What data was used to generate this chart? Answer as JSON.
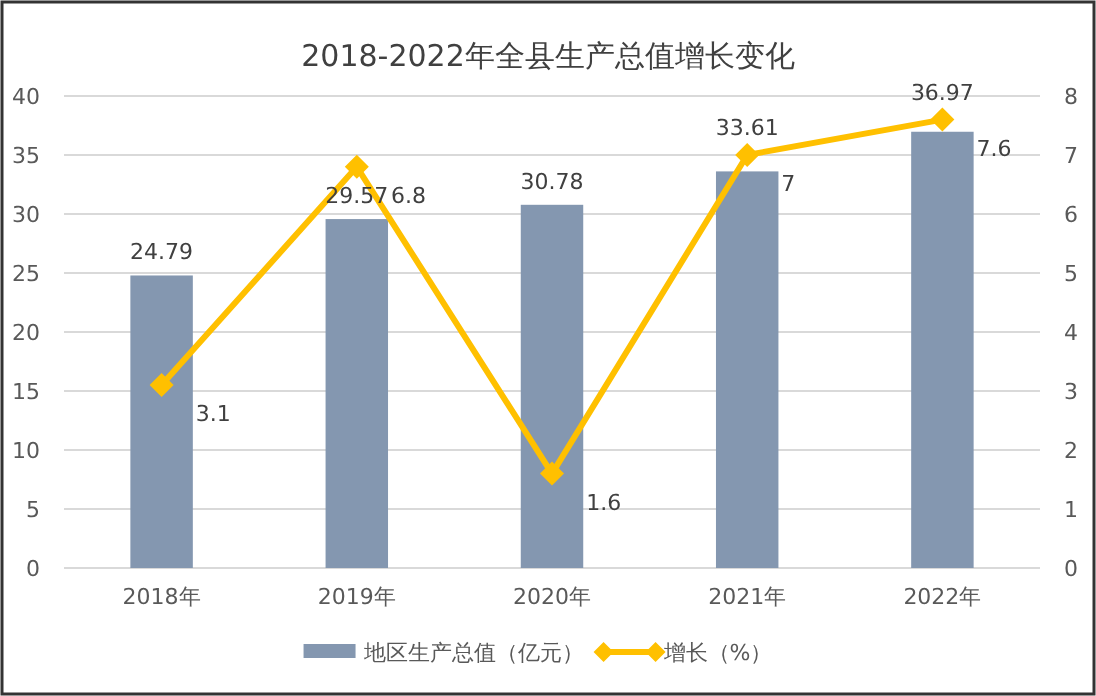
{
  "chart_data": {
    "type": "bar",
    "title": "2018-2022年全县生产总值增长变化",
    "categories": [
      "2018年",
      "2019年",
      "2020年",
      "2021年",
      "2022年"
    ],
    "series": [
      {
        "name": "地区生产总值（亿元）",
        "type": "bar",
        "color": "#8497b0",
        "values": [
          24.79,
          29.57,
          30.78,
          33.61,
          36.97
        ]
      },
      {
        "name": "增长（%）",
        "type": "line",
        "axis": "y2",
        "marker": "diamond",
        "color": "#ffc000",
        "values": [
          3.1,
          6.8,
          1.6,
          7,
          7.6
        ]
      }
    ],
    "ylim": [
      0,
      40
    ],
    "yticks": [
      0,
      5,
      10,
      15,
      20,
      25,
      30,
      35,
      40
    ],
    "y2lim": [
      0,
      8
    ],
    "y2ticks": [
      0,
      1,
      2,
      3,
      4,
      5,
      6,
      7,
      8
    ],
    "grid": "y",
    "legend": "bottom",
    "data_labels": true
  }
}
